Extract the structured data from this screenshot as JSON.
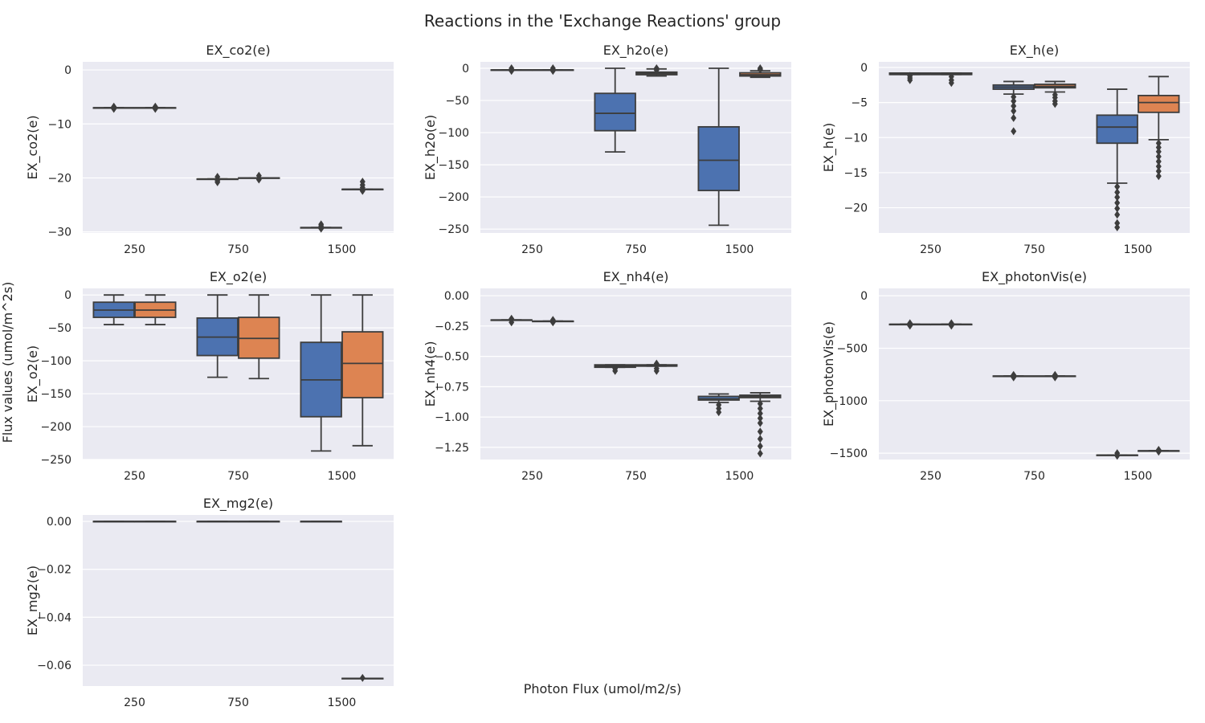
{
  "figure": {
    "title": "Reactions in the 'Exchange Reactions' group",
    "xlabel": "Photon Flux (umol/m2/s)",
    "ylabel": "Flux values (umol/m^2s)",
    "colors": {
      "background": "#eaeaf2",
      "grid": "#ffffff",
      "line": "#3d3d3d",
      "series_1": "#4c72b0",
      "series_2": "#dd8452"
    }
  },
  "chart_data": [
    {
      "type": "box",
      "title": "EX_co2(e)",
      "ylabel": "EX_co2(e)",
      "categories": [
        "250",
        "750",
        "1500"
      ],
      "ylim": [
        -30.2,
        1.5
      ],
      "yticks": [
        0,
        -10,
        -20,
        -30
      ],
      "grid": true,
      "series": [
        {
          "values": [
            {
              "whislo": -7.0,
              "q1": -7.0,
              "median": -7.0,
              "q3": -7.0,
              "whishi": -7.0,
              "fliers": [
                -6.8,
                -7.2
              ]
            },
            {
              "whislo": -20.2,
              "q1": -20.2,
              "median": -20.2,
              "q3": -20.2,
              "whishi": -20.2,
              "fliers": [
                -19.8,
                -20.5,
                -20.8
              ]
            },
            {
              "whislo": -29.2,
              "q1": -29.2,
              "median": -29.2,
              "q3": -29.2,
              "whishi": -29.2,
              "fliers": [
                -28.6,
                -28.9,
                -29.4
              ]
            }
          ]
        },
        {
          "values": [
            {
              "whislo": -7.0,
              "q1": -7.0,
              "median": -7.0,
              "q3": -7.0,
              "whishi": -7.0,
              "fliers": [
                -6.8,
                -7.2
              ]
            },
            {
              "whislo": -20.0,
              "q1": -20.0,
              "median": -20.0,
              "q3": -20.0,
              "whishi": -20.0,
              "fliers": [
                -19.6,
                -20.3
              ]
            },
            {
              "whislo": -22.1,
              "q1": -22.1,
              "median": -22.1,
              "q3": -22.1,
              "whishi": -22.1,
              "fliers": [
                -20.7,
                -21.3,
                -21.8,
                -22.4
              ]
            }
          ]
        }
      ]
    },
    {
      "type": "box",
      "title": "EX_h2o(e)",
      "ylabel": "EX_h2o(e)",
      "categories": [
        "250",
        "750",
        "1500"
      ],
      "ylim": [
        -256,
        10
      ],
      "yticks": [
        0,
        -50,
        -100,
        -150,
        -200,
        -250
      ],
      "grid": true,
      "series": [
        {
          "values": [
            {
              "whislo": -2.5,
              "q1": -2.5,
              "median": -2.5,
              "q3": -2.5,
              "whishi": -2.5,
              "fliers": [
                0,
                -4
              ]
            },
            {
              "whislo": -130,
              "q1": -97,
              "median": -70,
              "q3": -39,
              "whishi": 0,
              "fliers": []
            },
            {
              "whislo": -244,
              "q1": -190,
              "median": -143,
              "q3": -91,
              "whishi": 0,
              "fliers": []
            }
          ]
        },
        {
          "values": [
            {
              "whislo": -2.5,
              "q1": -2.5,
              "median": -2.5,
              "q3": -2.5,
              "whishi": -2.5,
              "fliers": [
                0,
                -4
              ]
            },
            {
              "whislo": -12,
              "q1": -10,
              "median": -8,
              "q3": -6,
              "whishi": -1,
              "fliers": [
                0,
                -3
              ]
            },
            {
              "whislo": -14,
              "q1": -12,
              "median": -10,
              "q3": -7,
              "whishi": -4,
              "fliers": [
                0,
                -2
              ]
            }
          ]
        }
      ]
    },
    {
      "type": "box",
      "title": "EX_h(e)",
      "ylabel": "EX_h(e)",
      "categories": [
        "250",
        "750",
        "1500"
      ],
      "ylim": [
        -23.6,
        0.8
      ],
      "yticks": [
        0,
        -5,
        -10,
        -15,
        -20
      ],
      "grid": true,
      "series": [
        {
          "values": [
            {
              "whislo": -1.0,
              "q1": -1.0,
              "median": -1.0,
              "q3": -0.8,
              "whishi": -0.8,
              "fliers": [
                -1.2,
                -1.5,
                -1.8
              ]
            },
            {
              "whislo": -3.8,
              "q1": -3.1,
              "median": -2.8,
              "q3": -2.5,
              "whishi": -2.0,
              "fliers": [
                -4.2,
                -4.8,
                -5.5,
                -6.2,
                -7.2,
                -9.1
              ]
            },
            {
              "whislo": -16.5,
              "q1": -10.8,
              "median": -8.5,
              "q3": -6.8,
              "whishi": -3.1,
              "fliers": [
                -17.0,
                -17.8,
                -18.5,
                -19.3,
                -20.1,
                -21.0,
                -22.2,
                -22.8
              ]
            }
          ]
        },
        {
          "values": [
            {
              "whislo": -1.0,
              "q1": -1.0,
              "median": -1.0,
              "q3": -0.8,
              "whishi": -0.8,
              "fliers": [
                -1.3,
                -1.8,
                -2.2
              ]
            },
            {
              "whislo": -3.5,
              "q1": -2.9,
              "median": -2.7,
              "q3": -2.4,
              "whishi": -2.0,
              "fliers": [
                -3.9,
                -4.3,
                -4.8,
                -5.2
              ]
            },
            {
              "whislo": -10.3,
              "q1": -6.4,
              "median": -5.0,
              "q3": -4.0,
              "whishi": -1.3,
              "fliers": [
                -10.8,
                -11.4,
                -12.0,
                -12.7,
                -13.4,
                -14.1,
                -14.8,
                -15.5
              ]
            }
          ]
        }
      ]
    },
    {
      "type": "box",
      "title": "EX_o2(e)",
      "ylabel": "EX_o2(e)",
      "categories": [
        "250",
        "750",
        "1500"
      ],
      "ylim": [
        -250,
        10
      ],
      "yticks": [
        0,
        -50,
        -100,
        -150,
        -200,
        -250
      ],
      "grid": true,
      "series": [
        {
          "values": [
            {
              "whislo": -45,
              "q1": -34,
              "median": -23,
              "q3": -11,
              "whishi": 0,
              "fliers": []
            },
            {
              "whislo": -125,
              "q1": -92,
              "median": -64,
              "q3": -35,
              "whishi": 0,
              "fliers": []
            },
            {
              "whislo": -237,
              "q1": -185,
              "median": -129,
              "q3": -72,
              "whishi": 0,
              "fliers": []
            }
          ]
        },
        {
          "values": [
            {
              "whislo": -45,
              "q1": -34,
              "median": -23,
              "q3": -11,
              "whishi": 0,
              "fliers": []
            },
            {
              "whislo": -127,
              "q1": -96,
              "median": -66,
              "q3": -34,
              "whishi": 0,
              "fliers": []
            },
            {
              "whislo": -229,
              "q1": -156,
              "median": -104,
              "q3": -56,
              "whishi": 0,
              "fliers": []
            }
          ]
        }
      ]
    },
    {
      "type": "box",
      "title": "EX_nh4(e)",
      "ylabel": "EX_nh4(e)",
      "categories": [
        "250",
        "750",
        "1500"
      ],
      "ylim": [
        -1.35,
        0.06
      ],
      "yticks": [
        0.0,
        -0.25,
        -0.5,
        -0.75,
        -1.0,
        -1.25
      ],
      "ytick_labels": [
        "0.00",
        "−0.25",
        "−0.50",
        "−0.75",
        "−1.00",
        "−1.25"
      ],
      "grid": true,
      "series": [
        {
          "values": [
            {
              "whislo": -0.2,
              "q1": -0.2,
              "median": -0.2,
              "q3": -0.2,
              "whishi": -0.2,
              "fliers": [
                -0.19,
                -0.22
              ]
            },
            {
              "whislo": -0.59,
              "q1": -0.59,
              "median": -0.58,
              "q3": -0.57,
              "whishi": -0.57,
              "fliers": [
                -0.6,
                -0.62
              ]
            },
            {
              "whislo": -0.88,
              "q1": -0.86,
              "median": -0.85,
              "q3": -0.83,
              "whishi": -0.81,
              "fliers": [
                -0.9,
                -0.93,
                -0.96
              ]
            }
          ]
        },
        {
          "values": [
            {
              "whislo": -0.21,
              "q1": -0.21,
              "median": -0.21,
              "q3": -0.21,
              "whishi": -0.21,
              "fliers": [
                -0.2,
                -0.22
              ]
            },
            {
              "whislo": -0.58,
              "q1": -0.58,
              "median": -0.58,
              "q3": -0.57,
              "whishi": -0.57,
              "fliers": [
                -0.56,
                -0.6,
                -0.62
              ]
            },
            {
              "whislo": -0.87,
              "q1": -0.84,
              "median": -0.83,
              "q3": -0.82,
              "whishi": -0.8,
              "fliers": [
                -0.89,
                -0.93,
                -0.97,
                -1.01,
                -1.05,
                -1.12,
                -1.18,
                -1.24,
                -1.3
              ]
            }
          ]
        }
      ]
    },
    {
      "type": "box",
      "title": "EX_photonVis(e)",
      "ylabel": "EX_photonVis(e)",
      "categories": [
        "250",
        "750",
        "1500"
      ],
      "ylim": [
        -1560,
        70
      ],
      "yticks": [
        0,
        -500,
        -1000,
        -1500
      ],
      "grid": true,
      "series": [
        {
          "values": [
            {
              "whislo": -272,
              "q1": -272,
              "median": -272,
              "q3": -272,
              "whishi": -272,
              "fliers": [
                -262,
                -285
              ]
            },
            {
              "whislo": -765,
              "q1": -765,
              "median": -765,
              "q3": -765,
              "whishi": -765,
              "fliers": [
                -755,
                -778
              ]
            },
            {
              "whislo": -1518,
              "q1": -1518,
              "median": -1518,
              "q3": -1518,
              "whishi": -1518,
              "fliers": [
                -1500,
                -1525
              ]
            }
          ]
        },
        {
          "values": [
            {
              "whislo": -272,
              "q1": -272,
              "median": -272,
              "q3": -272,
              "whishi": -272,
              "fliers": [
                -262,
                -285
              ]
            },
            {
              "whislo": -765,
              "q1": -765,
              "median": -765,
              "q3": -765,
              "whishi": -765,
              "fliers": [
                -755,
                -778
              ]
            },
            {
              "whislo": -1477,
              "q1": -1477,
              "median": -1477,
              "q3": -1477,
              "whishi": -1477,
              "fliers": [
                -1468,
                -1485
              ]
            }
          ]
        }
      ]
    },
    {
      "type": "box",
      "title": "EX_mg2(e)",
      "ylabel": "EX_mg2(e)",
      "categories": [
        "250",
        "750",
        "1500"
      ],
      "ylim": [
        -0.0687,
        0.0027
      ],
      "yticks": [
        0.0,
        -0.02,
        -0.04,
        -0.06
      ],
      "ytick_labels": [
        "0.00",
        "−0.02",
        "−0.04",
        "−0.06"
      ],
      "grid": true,
      "series": [
        {
          "values": [
            {
              "whislo": 0,
              "q1": 0,
              "median": 0,
              "q3": 0,
              "whishi": 0,
              "fliers": []
            },
            {
              "whislo": 0,
              "q1": 0,
              "median": 0,
              "q3": 0,
              "whishi": 0,
              "fliers": []
            },
            {
              "whislo": 0,
              "q1": 0,
              "median": 0,
              "q3": 0,
              "whishi": 0,
              "fliers": []
            }
          ]
        },
        {
          "values": [
            {
              "whislo": 0,
              "q1": 0,
              "median": 0,
              "q3": 0,
              "whishi": 0,
              "fliers": []
            },
            {
              "whislo": 0,
              "q1": 0,
              "median": 0,
              "q3": 0,
              "whishi": 0,
              "fliers": []
            },
            {
              "whislo": -0.0655,
              "q1": -0.0655,
              "median": -0.0655,
              "q3": -0.0655,
              "whishi": -0.0655,
              "fliers": [
                -0.0653
              ]
            }
          ]
        }
      ]
    }
  ]
}
